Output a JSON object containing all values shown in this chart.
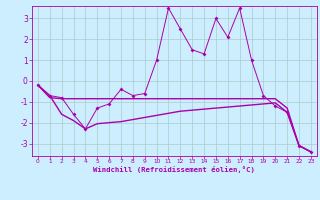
{
  "xlabel": "Windchill (Refroidissement éolien,°C)",
  "xlim": [
    -0.5,
    23.5
  ],
  "ylim": [
    -3.6,
    3.6
  ],
  "xticks": [
    0,
    1,
    2,
    3,
    4,
    5,
    6,
    7,
    8,
    9,
    10,
    11,
    12,
    13,
    14,
    15,
    16,
    17,
    18,
    19,
    20,
    21,
    22,
    23
  ],
  "yticks": [
    -3,
    -2,
    -1,
    0,
    1,
    2,
    3
  ],
  "background_color": "#cceeff",
  "grid_color": "#aacccc",
  "line_color": "#aa00aa",
  "line1_x": [
    0,
    1,
    2,
    3,
    4,
    5,
    6,
    7,
    8,
    9,
    10,
    11,
    12,
    13,
    14,
    15,
    16,
    17,
    18,
    19,
    20,
    21,
    22,
    23
  ],
  "line1_y": [
    -0.2,
    -0.7,
    -0.8,
    -1.6,
    -2.3,
    -1.3,
    -1.1,
    -0.4,
    -0.7,
    -0.6,
    1.0,
    3.5,
    2.5,
    1.5,
    1.3,
    3.0,
    2.1,
    3.5,
    1.0,
    -0.7,
    -1.2,
    -1.5,
    -3.1,
    -3.4
  ],
  "line2_x": [
    0,
    1,
    2,
    3,
    4,
    5,
    6,
    7,
    8,
    9,
    10,
    11,
    12,
    13,
    14,
    15,
    16,
    17,
    18,
    19,
    20,
    21,
    22,
    23
  ],
  "line2_y": [
    -0.2,
    -0.8,
    -0.85,
    -0.85,
    -0.85,
    -0.85,
    -0.85,
    -0.85,
    -0.85,
    -0.85,
    -0.85,
    -0.85,
    -0.85,
    -0.85,
    -0.85,
    -0.85,
    -0.85,
    -0.85,
    -0.85,
    -0.85,
    -0.85,
    -1.3,
    -3.1,
    -3.4
  ],
  "line3_x": [
    0,
    1,
    2,
    3,
    4,
    5,
    6,
    7,
    8,
    9,
    10,
    11,
    12,
    13,
    14,
    15,
    16,
    17,
    18,
    19,
    20,
    21,
    22,
    23
  ],
  "line3_y": [
    -0.2,
    -0.7,
    -1.6,
    -1.9,
    -2.3,
    -2.05,
    -2.0,
    -1.95,
    -1.85,
    -1.75,
    -1.65,
    -1.55,
    -1.45,
    -1.4,
    -1.35,
    -1.3,
    -1.25,
    -1.2,
    -1.15,
    -1.1,
    -1.05,
    -1.5,
    -3.1,
    -3.4
  ]
}
